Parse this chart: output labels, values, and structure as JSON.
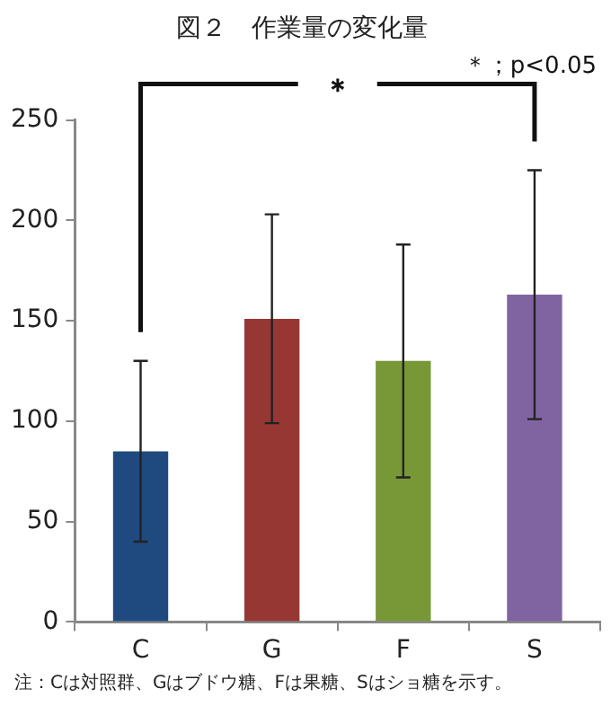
{
  "chart_data": {
    "type": "bar",
    "title": "図２　作業量の変化量",
    "categories": [
      "C",
      "G",
      "F",
      "S"
    ],
    "values": [
      85,
      151,
      130,
      163
    ],
    "colors": [
      "#1f4a80",
      "#963734",
      "#789838",
      "#8064a2"
    ],
    "errors": [
      [
        40,
        130
      ],
      [
        99,
        203
      ],
      [
        72,
        188
      ],
      [
        101,
        225
      ]
    ],
    "ylim": [
      0,
      250
    ],
    "yticks": [
      0,
      50,
      100,
      150,
      200,
      250
    ],
    "grid": false,
    "legend": false,
    "annotations": [
      "＊",
      "＊；p<0.05",
      "注：Cは対照群、Gはブドウ糖、Fは果糖、Sはショ糖を示す。"
    ]
  }
}
